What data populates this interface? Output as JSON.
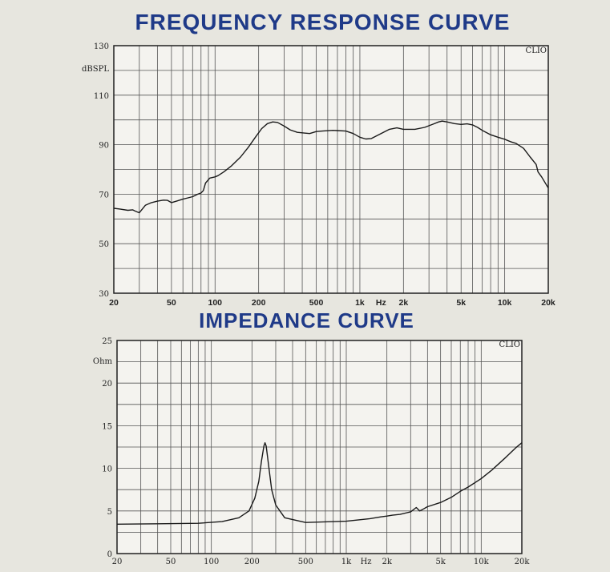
{
  "chart_data": [
    {
      "type": "line",
      "title": "FREQUENCY RESPONSE CURVE",
      "xlabel": "Hz",
      "ylabel": "dBSPL",
      "watermark": "CLIO",
      "xscale": "log",
      "xlim": [
        20,
        20000
      ],
      "ylim": [
        30,
        130
      ],
      "grid": true,
      "x_tick_labels": [
        "20",
        "50",
        "100",
        "200",
        "500",
        "1k",
        "2k",
        "5k",
        "10k",
        "20k"
      ],
      "y_tick_labels": [
        "30",
        "50",
        "70",
        "90",
        "110",
        "130"
      ],
      "series": [
        {
          "x": [
            20,
            22,
            25,
            27,
            28,
            30,
            33,
            36,
            40,
            44,
            47,
            50,
            55,
            60,
            65,
            70,
            76,
            80,
            83,
            86,
            92,
            100,
            105,
            115,
            130,
            150,
            170,
            190,
            210,
            230,
            250,
            270,
            300,
            330,
            370,
            400,
            450,
            500,
            550,
            650,
            700,
            800,
            900,
            1000,
            1100,
            1200,
            1400,
            1600,
            1800,
            2000,
            2400,
            2800,
            3200,
            3500,
            3700,
            4000,
            4500,
            5000,
            5500,
            6000,
            6500,
            7000,
            8000,
            9000,
            10000,
            11000,
            12000,
            13500,
            15000,
            16500,
            17000,
            18000,
            20000
          ],
          "y": [
            64.3,
            64,
            63.5,
            63.7,
            63.2,
            62.5,
            65.5,
            66.5,
            67.2,
            67.6,
            67.5,
            66.6,
            67.3,
            68,
            68.5,
            69,
            70,
            70.5,
            71.5,
            74.5,
            76.5,
            77,
            77.5,
            79,
            81.5,
            85,
            89,
            93,
            96.5,
            98.5,
            99.2,
            99,
            97.5,
            96,
            95,
            94.8,
            94.5,
            95.3,
            95.5,
            95.8,
            95.7,
            95.5,
            94.5,
            93,
            92.3,
            92.5,
            94.5,
            96.2,
            96.8,
            96.2,
            96.2,
            97,
            98.3,
            99.2,
            99.5,
            99.2,
            98.5,
            98.2,
            98.4,
            98,
            97,
            95.8,
            94,
            93,
            92.2,
            91.2,
            90.5,
            88.5,
            85,
            82,
            79,
            77,
            72.5
          ]
        }
      ]
    },
    {
      "type": "line",
      "title": "IMPEDANCE CURVE",
      "xlabel": "Hz",
      "ylabel": "Ohm",
      "watermark": "CLIO",
      "xscale": "log",
      "xlim": [
        20,
        20000
      ],
      "ylim": [
        0,
        25
      ],
      "grid": true,
      "x_tick_labels": [
        "20",
        "50",
        "100",
        "200",
        "500",
        "1k",
        "2k",
        "5k",
        "10k",
        "20k"
      ],
      "y_tick_labels": [
        "0",
        "5",
        "10",
        "15",
        "20",
        "25"
      ],
      "series": [
        {
          "x": [
            20,
            40,
            80,
            120,
            160,
            190,
            210,
            225,
            235,
            245,
            250,
            255,
            265,
            280,
            300,
            350,
            500,
            1000,
            1500,
            1800,
            2000,
            2200,
            2500,
            3000,
            3300,
            3500,
            3700,
            4000,
            5000,
            6000,
            7000,
            8000,
            10000,
            12000,
            15000,
            18000,
            20000
          ],
          "y": [
            3.45,
            3.5,
            3.55,
            3.75,
            4.2,
            5.0,
            6.5,
            8.5,
            10.8,
            12.6,
            13.0,
            12.6,
            10.5,
            7.5,
            5.7,
            4.2,
            3.65,
            3.8,
            4.1,
            4.3,
            4.4,
            4.5,
            4.6,
            4.9,
            5.4,
            5.0,
            5.2,
            5.5,
            6.0,
            6.6,
            7.3,
            7.8,
            8.8,
            9.8,
            11.2,
            12.4,
            13.0
          ]
        }
      ]
    }
  ]
}
